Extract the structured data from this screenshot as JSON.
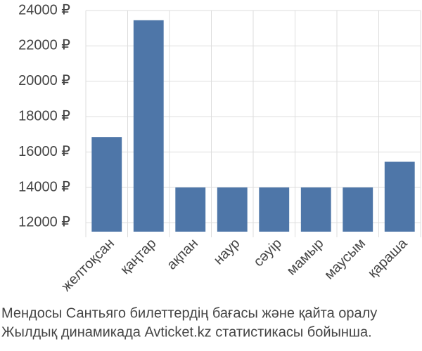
{
  "chart_data": {
    "type": "bar",
    "categories": [
      "желтоқсан",
      "қаңтар",
      "ақпан",
      "наур",
      "сәуір",
      "мамыр",
      "маусым",
      "қараша"
    ],
    "values": [
      16850,
      23450,
      14000,
      14000,
      14000,
      14000,
      14000,
      15450
    ],
    "color": "#4e76a8",
    "ylim": [
      11500,
      24000
    ],
    "yticks": [
      {
        "value": 12000,
        "label": "12000 ₽"
      },
      {
        "value": 14000,
        "label": "14000 ₽"
      },
      {
        "value": 16000,
        "label": "16000 ₽"
      },
      {
        "value": 18000,
        "label": "18000 ₽"
      },
      {
        "value": 20000,
        "label": "20000 ₽"
      },
      {
        "value": 22000,
        "label": "22000 ₽"
      },
      {
        "value": 24000,
        "label": "24000 ₽"
      }
    ],
    "grid": true,
    "caption": [
      "Мендосы Сантьяго билеттердің бағасы және қайта оралу",
      "Жылдық динамикада Avticket.kz статистикасы бойынша."
    ]
  }
}
